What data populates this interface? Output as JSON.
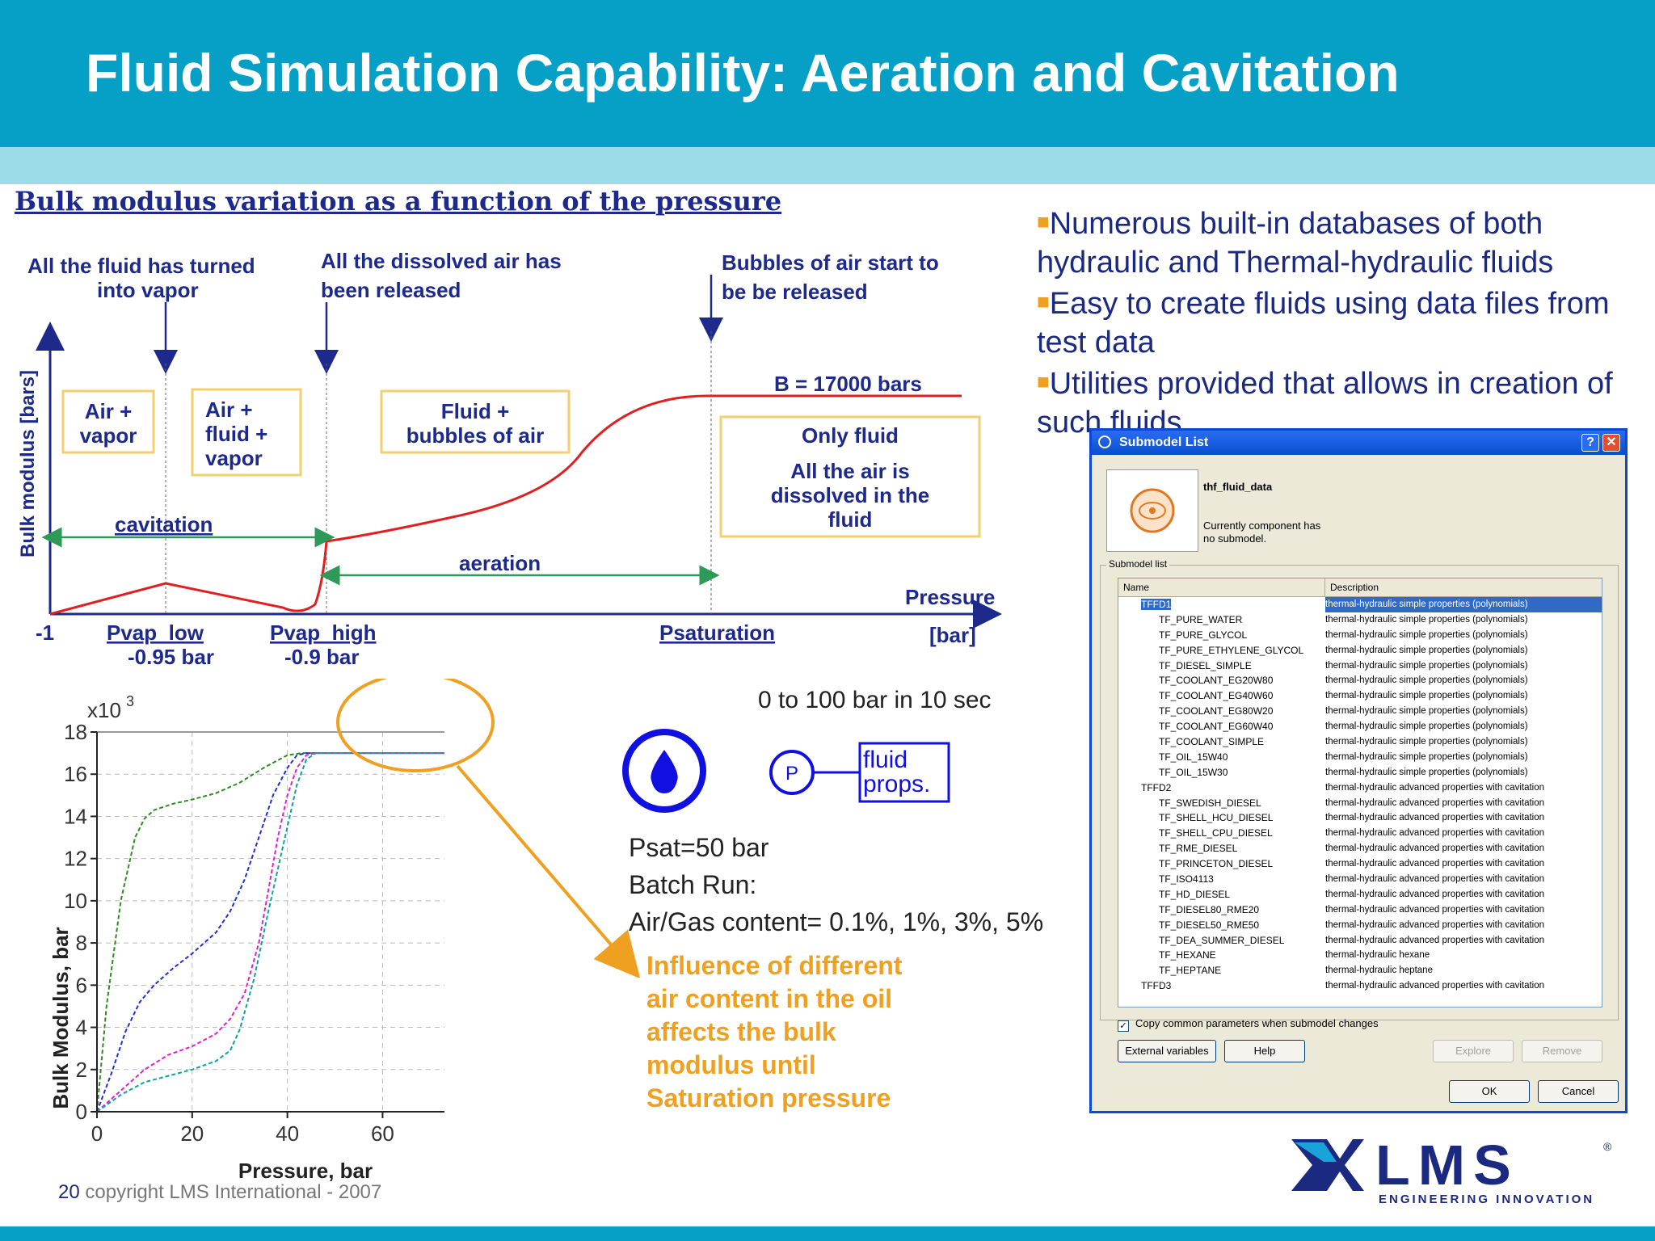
{
  "header": {
    "title": "Fluid Simulation Capability: Aeration and Cavitation"
  },
  "diagram": {
    "heading": "Bulk modulus variation as a function of the pressure",
    "ylabel": "Bulk modulus [bars]",
    "annotations": {
      "vapor_1": "All the fluid has turned",
      "vapor_2": "into vapor",
      "released_1": "All the dissolved air has",
      "released_2": "been released",
      "bubbles_1": "Bubbles of air start to",
      "bubbles_2": "be be released"
    },
    "regions": {
      "air_vapor_1": "Air +",
      "air_vapor_2": "vapor",
      "air_fluid_vapor_1": "Air +",
      "air_fluid_vapor_2": "fluid +",
      "air_fluid_vapor_3": "vapor",
      "fluid_bubbles_1": "Fluid +",
      "fluid_bubbles_2": "bubbles of air",
      "only_fluid": "Only fluid",
      "dissolved_1": "All the air is",
      "dissolved_2": "dissolved in the",
      "dissolved_3": "fluid"
    },
    "b_label": "B = 17000 bars",
    "cavitation": "cavitation",
    "aeration": "aeration",
    "pressure_label": "Pressure",
    "bar_label": "[bar]",
    "ticks": {
      "m1": "-1",
      "pvap_low": "Pvap_low",
      "pvap_low_val": "-0.95 bar",
      "pvap_high": "Pvap_high",
      "pvap_high_val": "-0.9 bar",
      "psat": "Psaturation"
    }
  },
  "bullets": [
    {
      "text": "Numerous built-in databases of both hydraulic and Thermal-hydraulic fluids"
    },
    {
      "text": "Easy to create fluids using data files from test data"
    },
    {
      "text": "Utilities provided that allows in creation of such fluids"
    }
  ],
  "chart_data": {
    "type": "line",
    "xlabel": "Pressure, bar",
    "ylabel": "Bulk Modulus, bar",
    "y_multiplier": "x10",
    "y_multiplier_exp": "3",
    "xlim": [
      0,
      73
    ],
    "ylim": [
      0,
      18
    ],
    "xticks": [
      0,
      20,
      40,
      60
    ],
    "yticks": [
      0,
      2,
      4,
      6,
      8,
      10,
      12,
      14,
      16,
      18
    ],
    "grid": true,
    "series": [
      {
        "color": "#2e8b20",
        "x": [
          0,
          2,
          5,
          8,
          10,
          12,
          16,
          20,
          25,
          30,
          35,
          40,
          43,
          46,
          55,
          73
        ],
        "y": [
          0,
          5,
          10,
          13,
          13.9,
          14.3,
          14.6,
          14.8,
          15.1,
          15.6,
          16.3,
          16.9,
          17,
          17,
          17,
          17
        ]
      },
      {
        "color": "#2030d0",
        "x": [
          0,
          3,
          6,
          9,
          12,
          16,
          20,
          25,
          28,
          31,
          34,
          37,
          40,
          42,
          44,
          46,
          55,
          73
        ],
        "y": [
          0,
          1.8,
          3.8,
          5.2,
          6,
          6.8,
          7.5,
          8.5,
          9.5,
          11,
          13,
          15,
          16.3,
          16.9,
          17,
          17,
          17,
          17
        ]
      },
      {
        "color": "#e020d0",
        "x": [
          0,
          5,
          10,
          15,
          20,
          25,
          28,
          31,
          34,
          36,
          38,
          40,
          42,
          44,
          46,
          55,
          73
        ],
        "y": [
          0,
          1,
          2,
          2.7,
          3.1,
          3.7,
          4.4,
          5.6,
          8,
          10.5,
          13,
          15,
          16.3,
          16.9,
          17,
          17,
          17
        ]
      },
      {
        "color": "#10a0a0",
        "x": [
          0,
          5,
          10,
          15,
          20,
          25,
          28,
          30,
          33,
          36,
          38,
          40,
          42,
          44,
          46,
          55,
          73
        ],
        "y": [
          0,
          0.8,
          1.4,
          1.7,
          2,
          2.4,
          2.9,
          3.9,
          6.3,
          9.5,
          11.5,
          13.5,
          15.5,
          16.7,
          17,
          17,
          17
        ]
      }
    ]
  },
  "sim": {
    "ramp": "0 to 100 bar in 10 sec",
    "p_symbol": "P",
    "fluid_1": "fluid",
    "fluid_2": "props.",
    "psat": "Psat=50 bar",
    "batch": "Batch Run:",
    "air": "Air/Gas content= 0.1%, 1%, 3%, 5%",
    "influence": [
      "Influence of different",
      "air content in the oil",
      "affects the bulk",
      "modulus until",
      "Saturation pressure"
    ]
  },
  "dialog": {
    "title": "Submodel List",
    "component_name": "thf_fluid_data",
    "status": "Currently component has no submodel.",
    "group_label": "Submodel list",
    "col_name": "Name",
    "col_desc": "Description",
    "rows": [
      {
        "name": "TFFD1",
        "desc": "thermal-hydraulic simple properties (polynomials)",
        "level": 0,
        "selected": true
      },
      {
        "name": "TF_PURE_WATER",
        "desc": "thermal-hydraulic simple properties (polynomials)",
        "level": 1
      },
      {
        "name": "TF_PURE_GLYCOL",
        "desc": "thermal-hydraulic simple properties (polynomials)",
        "level": 1
      },
      {
        "name": "TF_PURE_ETHYLENE_GLYCOL",
        "desc": "thermal-hydraulic simple properties (polynomials)",
        "level": 1
      },
      {
        "name": "TF_DIESEL_SIMPLE",
        "desc": "thermal-hydraulic simple properties (polynomials)",
        "level": 1
      },
      {
        "name": "TF_COOLANT_EG20W80",
        "desc": "thermal-hydraulic simple properties (polynomials)",
        "level": 1
      },
      {
        "name": "TF_COOLANT_EG40W60",
        "desc": "thermal-hydraulic simple properties (polynomials)",
        "level": 1
      },
      {
        "name": "TF_COOLANT_EG80W20",
        "desc": "thermal-hydraulic simple properties (polynomials)",
        "level": 1
      },
      {
        "name": "TF_COOLANT_EG60W40",
        "desc": "thermal-hydraulic simple properties (polynomials)",
        "level": 1
      },
      {
        "name": "TF_COOLANT_SIMPLE",
        "desc": "thermal-hydraulic simple properties (polynomials)",
        "level": 1
      },
      {
        "name": "TF_OIL_15W40",
        "desc": "thermal-hydraulic simple properties (polynomials)",
        "level": 1
      },
      {
        "name": "TF_OIL_15W30",
        "desc": "thermal-hydraulic simple properties (polynomials)",
        "level": 1
      },
      {
        "name": "TFFD2",
        "desc": "thermal-hydraulic advanced properties with cavitation",
        "level": 0
      },
      {
        "name": "TF_SWEDISH_DIESEL",
        "desc": "thermal-hydraulic advanced properties with cavitation",
        "level": 1
      },
      {
        "name": "TF_SHELL_HCU_DIESEL",
        "desc": "thermal-hydraulic advanced properties with cavitation",
        "level": 1
      },
      {
        "name": "TF_SHELL_CPU_DIESEL",
        "desc": "thermal-hydraulic advanced properties with cavitation",
        "level": 1
      },
      {
        "name": "TF_RME_DIESEL",
        "desc": "thermal-hydraulic advanced properties with cavitation",
        "level": 1
      },
      {
        "name": "TF_PRINCETON_DIESEL",
        "desc": "thermal-hydraulic advanced properties with cavitation",
        "level": 1
      },
      {
        "name": "TF_ISO4113",
        "desc": "thermal-hydraulic advanced properties with cavitation",
        "level": 1
      },
      {
        "name": "TF_HD_DIESEL",
        "desc": "thermal-hydraulic advanced properties with cavitation",
        "level": 1
      },
      {
        "name": "TF_DIESEL80_RME20",
        "desc": "thermal-hydraulic advanced properties with cavitation",
        "level": 1
      },
      {
        "name": "TF_DIESEL50_RME50",
        "desc": "thermal-hydraulic advanced properties with cavitation",
        "level": 1
      },
      {
        "name": "TF_DEA_SUMMER_DIESEL",
        "desc": "thermal-hydraulic advanced properties with cavitation",
        "level": 1
      },
      {
        "name": "TF_HEXANE",
        "desc": "thermal-hydraulic hexane",
        "level": 1
      },
      {
        "name": "TF_HEPTANE",
        "desc": "thermal-hydraulic heptane",
        "level": 1
      },
      {
        "name": "TFFD3",
        "desc": "thermal-hydraulic advanced properties with cavitation",
        "level": 0
      }
    ],
    "checkbox_label": "Copy common parameters when submodel changes",
    "buttons": {
      "external": "External variables",
      "help": "Help",
      "explore": "Explore",
      "remove": "Remove",
      "ok": "OK",
      "cancel": "Cancel"
    }
  },
  "footer": {
    "page": "20",
    "copyright": "copyright LMS International - 2007"
  },
  "logo": {
    "text": "LMS",
    "tagline": "ENGINEERING INNOVATION",
    "reg": "®"
  }
}
